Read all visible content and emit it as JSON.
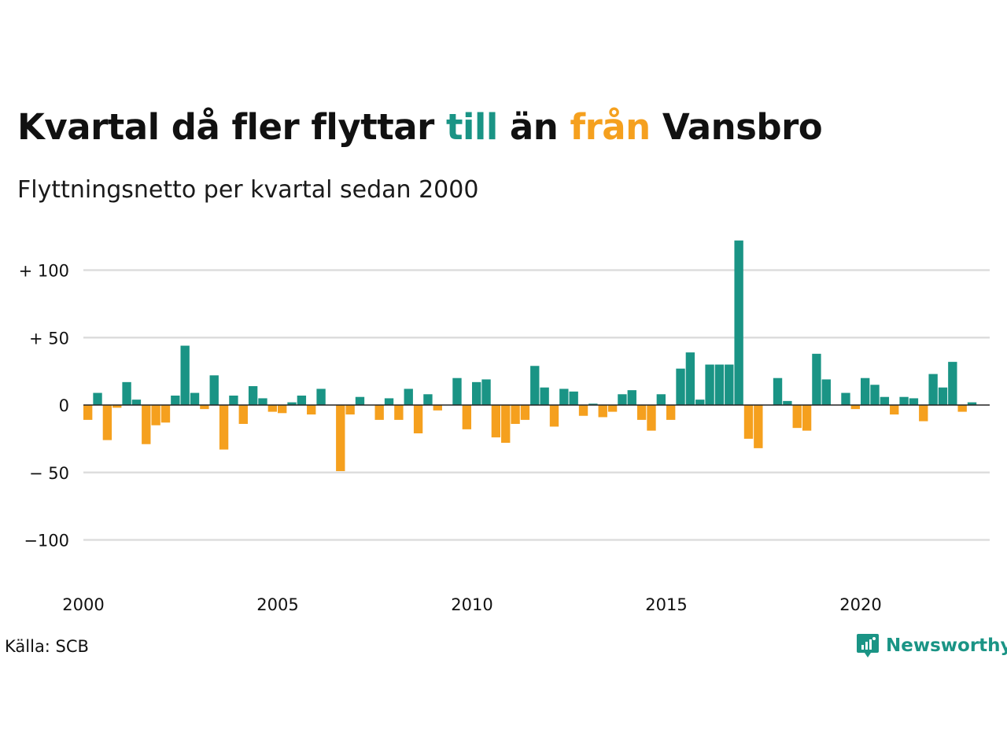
{
  "title": {
    "part1": "Kvartal då fler flyttar ",
    "word_in": "till",
    "part2": " än ",
    "word_out": "från",
    "part3": " Vansbro"
  },
  "subtitle": "Flyttningsnetto per kvartal sedan 2000",
  "source": "Källa: SCB",
  "brand": {
    "name": "Newsworthy",
    "icon": "newsworthy-logo-icon"
  },
  "colors": {
    "positive": "#1a9485",
    "negative": "#f5a01e",
    "grid": "#dddddd",
    "zero_line": "#222222",
    "text": "#111111"
  },
  "chart_data": {
    "type": "bar",
    "title": "Kvartal då fler flyttar till än från Vansbro",
    "subtitle": "Flyttningsnetto per kvartal sedan 2000",
    "x_start": 2000.0,
    "x_step": 0.25,
    "xlim": [
      2000,
      2023.5
    ],
    "ylim": [
      -135,
      125
    ],
    "y_ticks": [
      100,
      50,
      0,
      -50,
      -100
    ],
    "y_tick_labels": [
      "+ 100",
      "+  50",
      "0",
      "− 50",
      "−100"
    ],
    "x_ticks": [
      2000,
      2005,
      2010,
      2015,
      2020
    ],
    "x_tick_labels": [
      "2000",
      "2005",
      "2010",
      "2015",
      "2020"
    ],
    "grid": true,
    "values": [
      -11,
      9,
      -26,
      -2,
      17,
      4,
      -29,
      -15,
      -13,
      7,
      44,
      9,
      -3,
      22,
      -33,
      7,
      -14,
      14,
      5,
      -5,
      -6,
      2,
      7,
      -7,
      12,
      0,
      -49,
      -7,
      6,
      0,
      -11,
      5,
      -11,
      12,
      -21,
      8,
      -4,
      0,
      20,
      -18,
      17,
      19,
      -24,
      -28,
      -14,
      -11,
      29,
      13,
      -16,
      12,
      10,
      -8,
      1,
      -9,
      -5,
      8,
      11,
      -11,
      -19,
      8,
      -11,
      27,
      39,
      4,
      30,
      30,
      30,
      122,
      -25,
      -32,
      0,
      20,
      3,
      -17,
      -19,
      38,
      19,
      0,
      9,
      -3,
      20,
      15,
      6,
      -7,
      6,
      5,
      -12,
      23,
      13,
      32,
      -5,
      2
    ]
  }
}
